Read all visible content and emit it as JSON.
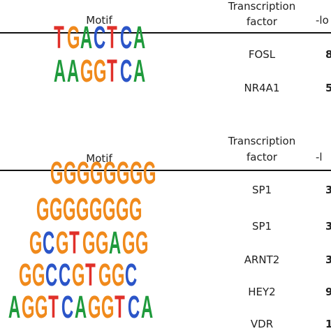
{
  "table1": {
    "header": {
      "motif": "Motif",
      "tf": [
        "Transcription",
        "factor"
      ],
      "score": "-lo"
    },
    "rows": [
      {
        "logo": [
          "T",
          "G",
          "A",
          "C",
          "T",
          "C",
          "A"
        ],
        "tf": "FOSL",
        "score": "8"
      },
      {
        "logo": [
          "A",
          "A",
          "G",
          "G",
          "T",
          "C",
          "A"
        ],
        "tf": "NR4A1",
        "score": "5"
      }
    ]
  },
  "table2": {
    "header": {
      "motif": "Motif",
      "tf": [
        "Transcription",
        "factor"
      ],
      "score": "-l"
    },
    "rows": [
      {
        "logo": [
          "G",
          "G",
          "G",
          "G",
          "G",
          "G",
          "G",
          "G"
        ],
        "tf": "SP1",
        "score": "3"
      },
      {
        "logo": [
          "G",
          "G",
          "G",
          "G",
          "G",
          "G",
          "G",
          "G"
        ],
        "tf": "SP1",
        "score": "3"
      },
      {
        "logo": [
          "G",
          "C",
          "G",
          "T",
          "G",
          "G",
          "A",
          "G",
          "G"
        ],
        "tf": "ARNT2",
        "score": "3"
      },
      {
        "logo": [
          "G",
          "G",
          "C",
          "C",
          "G",
          "T",
          "G",
          "G",
          "C"
        ],
        "tf": "HEY2",
        "score": "9"
      },
      {
        "logo": [
          "A",
          "G",
          "G",
          "T",
          "C",
          "A",
          "G",
          "G",
          "T",
          "C",
          "A"
        ],
        "tf": "VDR",
        "score": "1"
      }
    ]
  },
  "base_colors": {
    "A": "#1f9a3c",
    "C": "#2b55c8",
    "G": "#f08a1c",
    "T": "#e0302a"
  }
}
